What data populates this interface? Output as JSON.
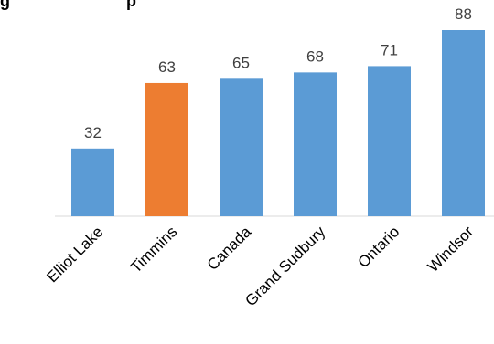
{
  "chart_data": {
    "type": "bar",
    "title": "g",
    "title_tail": "p",
    "categories": [
      "Elliot Lake",
      "Timmins",
      "Canada",
      "Grand Sudbury",
      "Ontario",
      "Windsor"
    ],
    "values": [
      32,
      63,
      65,
      68,
      71,
      88
    ],
    "colors": [
      "#5b9bd5",
      "#ed7d31",
      "#5b9bd5",
      "#5b9bd5",
      "#5b9bd5",
      "#5b9bd5"
    ],
    "ylim": [
      0,
      88
    ],
    "grid": false,
    "legend": "none",
    "xlabel": "",
    "ylabel": ""
  }
}
